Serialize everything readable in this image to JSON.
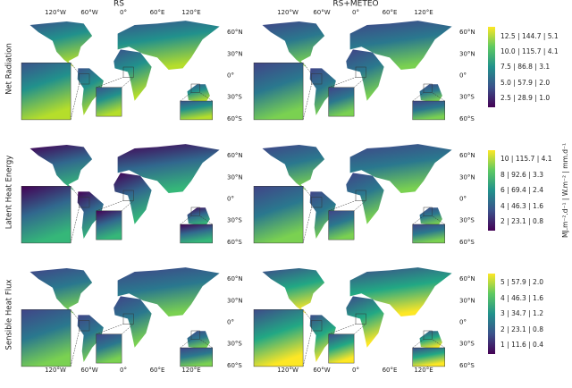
{
  "columns": [
    "RS",
    "RS+METEO"
  ],
  "rows": [
    {
      "label": "Net Radiation",
      "colorbar_ticks": [
        "12.5 | 144.7 | 5.1",
        "10.0 | 115.7 | 4.1",
        "7.5 | 86.8 | 3.1",
        "5.0 | 57.9 | 2.0",
        "2.5 | 28.9 | 1.0"
      ]
    },
    {
      "label": "Latent Heat Energy",
      "colorbar_ticks": [
        "10 | 115.7 | 4.1",
        "8 | 92.6 | 3.3",
        "6 | 69.4 | 2.4",
        "4 | 46.3 | 1.6",
        "2 | 23.1 | 0.8"
      ]
    },
    {
      "label": "Sensible Heat Flux",
      "colorbar_ticks": [
        "5 | 57.9 | 2.0",
        "4 | 46.3 | 1.6",
        "3 | 34.7 | 1.2",
        "2 | 23.1 | 0.8",
        "1 | 11.6 | 0.4"
      ]
    }
  ],
  "colorbar_unit": "MJ.m⁻².d⁻¹ | W.m⁻² | mm.d⁻¹",
  "lon_labels": [
    "120°W",
    "60°W",
    "0°",
    "60°E",
    "120°E"
  ],
  "lat_labels": [
    "60°N",
    "30°N",
    "0°",
    "30°S",
    "60°S"
  ]
}
